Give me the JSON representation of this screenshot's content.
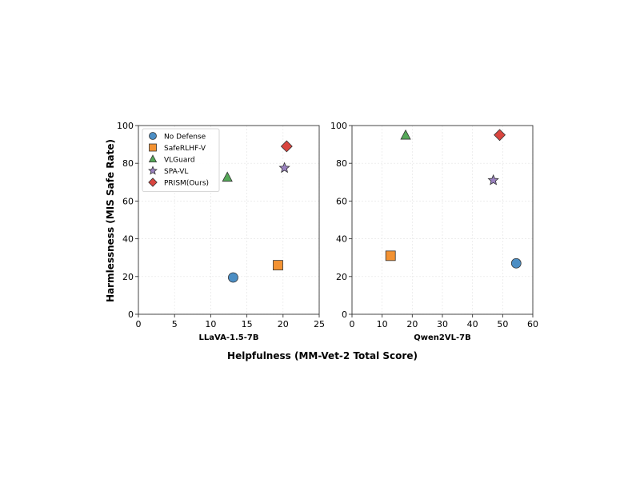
{
  "chart_data": {
    "type": "scatter",
    "xlabel": "Helpfulness (MM-Vet-2 Total Score)",
    "ylabel": "Harmlessness (MIS Safe Rate)",
    "legend": {
      "placement": "top-left",
      "entries": [
        {
          "name": "No Defense",
          "color": "#4c8ec4",
          "marker": "circle"
        },
        {
          "name": "SafeRLHF-V",
          "color": "#f39232",
          "marker": "square"
        },
        {
          "name": "VLGuard",
          "color": "#55a858",
          "marker": "triangle"
        },
        {
          "name": "SPA-VL",
          "color": "#9a82c0",
          "marker": "star"
        },
        {
          "name": "PRISM(Ours)",
          "color": "#d9453f",
          "marker": "diamond"
        }
      ]
    },
    "panels": [
      {
        "label": "LLaVA-1.5-7B",
        "xlim": [
          0,
          25
        ],
        "ylim": [
          0,
          100
        ],
        "xticks": [
          "0",
          "5",
          "10",
          "15",
          "20",
          "25"
        ],
        "yticks": [
          "0",
          "20",
          "40",
          "60",
          "80",
          "100"
        ],
        "grid": true,
        "points": [
          {
            "series": "No Defense",
            "x": 13.1,
            "y": 19.5
          },
          {
            "series": "SafeRLHF-V",
            "x": 19.3,
            "y": 26.0
          },
          {
            "series": "VLGuard",
            "x": 12.3,
            "y": 72.5
          },
          {
            "series": "SPA-VL",
            "x": 20.2,
            "y": 77.5
          },
          {
            "series": "PRISM(Ours)",
            "x": 20.5,
            "y": 89.0
          }
        ]
      },
      {
        "label": "Qwen2VL-7B",
        "xlim": [
          0,
          60
        ],
        "ylim": [
          0,
          100
        ],
        "xticks": [
          "0",
          "10",
          "20",
          "30",
          "40",
          "50",
          "60"
        ],
        "yticks": [
          "0",
          "20",
          "40",
          "60",
          "80",
          "100"
        ],
        "grid": true,
        "points": [
          {
            "series": "No Defense",
            "x": 54.5,
            "y": 27.0
          },
          {
            "series": "SafeRLHF-V",
            "x": 12.8,
            "y": 31.0
          },
          {
            "series": "VLGuard",
            "x": 17.8,
            "y": 94.8
          },
          {
            "series": "SPA-VL",
            "x": 46.9,
            "y": 71.0
          },
          {
            "series": "PRISM(Ours)",
            "x": 49.0,
            "y": 95.0
          }
        ]
      }
    ]
  }
}
